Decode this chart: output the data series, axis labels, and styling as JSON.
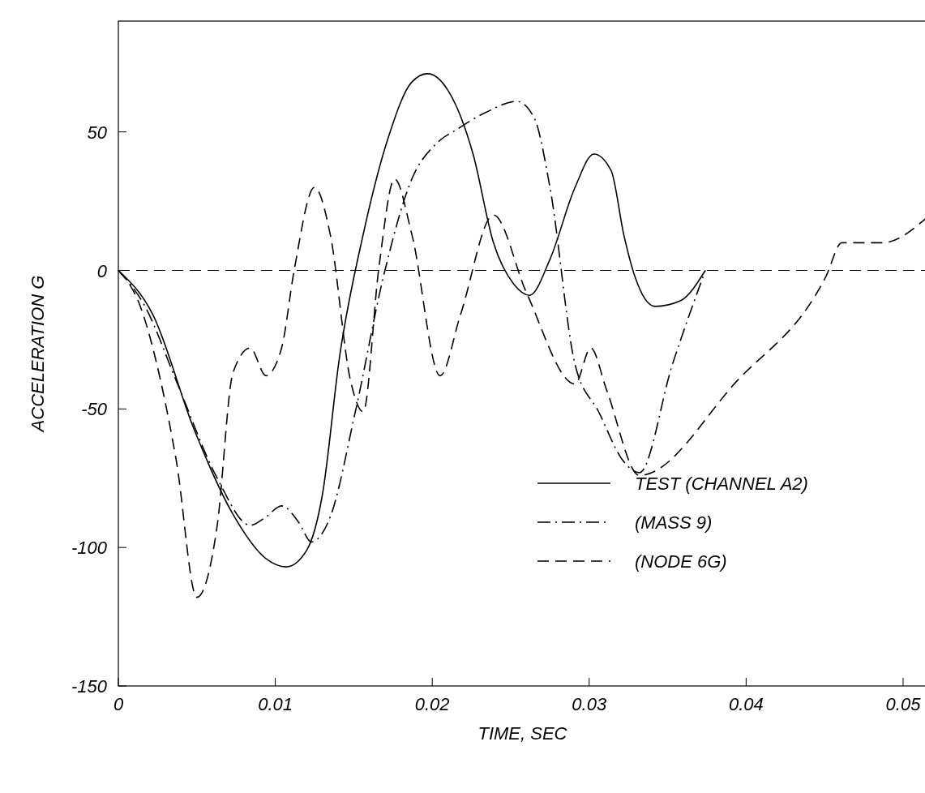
{
  "chart_data": {
    "type": "line",
    "xlabel": "TIME, SEC",
    "ylabel": "ACCELERATION G",
    "xlim": [
      0,
      0.0515
    ],
    "ylim": [
      -150,
      90
    ],
    "xticks": [
      0,
      0.01,
      0.02,
      0.03,
      0.04,
      0.05
    ],
    "yticks": [
      -150,
      -100,
      -50,
      0,
      50
    ],
    "grid": false,
    "legend": "bottom right",
    "marker": "none",
    "ref_lines": [
      {
        "axis": "y",
        "value": 0,
        "color": "#000000",
        "line_style": "dashed"
      }
    ],
    "series": [
      {
        "name": "TEST (CHANNEL A2)",
        "color": "#000000",
        "line_style": "solid",
        "x": [
          0,
          0.0022,
          0.0048,
          0.0073,
          0.0094,
          0.0107,
          0.012,
          0.013,
          0.0141,
          0.0156,
          0.0172,
          0.0187,
          0.0197,
          0.021,
          0.0226,
          0.0239,
          0.0252,
          0.0262,
          0.0275,
          0.0291,
          0.0303,
          0.0314,
          0.0322,
          0.0329,
          0.0342,
          0.0358,
          0.0374
        ],
        "values": [
          0,
          -16,
          -57,
          -88,
          -104,
          -107,
          -101,
          -81,
          -31,
          13,
          48,
          68,
          71,
          65,
          42,
          10,
          -5,
          -9,
          4,
          30,
          42,
          36,
          13,
          -2,
          -13,
          -11,
          0
        ]
      },
      {
        "name": "(MASS 9)",
        "color": "#000000",
        "line_style": "dashdot",
        "x": [
          0,
          0.0017,
          0.0037,
          0.0063,
          0.0084,
          0.0094,
          0.0104,
          0.0115,
          0.0123,
          0.0135,
          0.0151,
          0.0169,
          0.0187,
          0.0203,
          0.0216,
          0.0234,
          0.0254,
          0.0265,
          0.0275,
          0.0291,
          0.0306,
          0.0322,
          0.0332,
          0.0353,
          0.0374
        ],
        "values": [
          0,
          -13,
          -40,
          -75,
          -92,
          -89,
          -85,
          -91,
          -98,
          -89,
          -51,
          -2,
          33,
          46,
          51,
          57,
          61,
          55,
          30,
          -34,
          -51,
          -69,
          -73,
          -34,
          0
        ]
      },
      {
        "name": "(NODE 6G)",
        "color": "#000000",
        "line_style": "dashed",
        "x": [
          0,
          0.0014,
          0.0027,
          0.0037,
          0.005,
          0.0063,
          0.0073,
          0.0084,
          0.0094,
          0.0104,
          0.0112,
          0.0125,
          0.0135,
          0.0148,
          0.0156,
          0.0166,
          0.0176,
          0.0187,
          0.0205,
          0.0218,
          0.0239,
          0.026,
          0.0291,
          0.0301,
          0.0311,
          0.0332,
          0.0394,
          0.0451,
          0.0461,
          0.0487,
          0.0515
        ],
        "values": [
          0,
          -13,
          -40,
          -69,
          -118,
          -92,
          -37,
          -28,
          -38,
          -28,
          0,
          30,
          13,
          -40,
          -51,
          1,
          33,
          13,
          -38,
          -16,
          20,
          -8,
          -41,
          -28,
          -43,
          -74,
          -40,
          -2,
          10,
          10,
          19
        ]
      }
    ]
  }
}
